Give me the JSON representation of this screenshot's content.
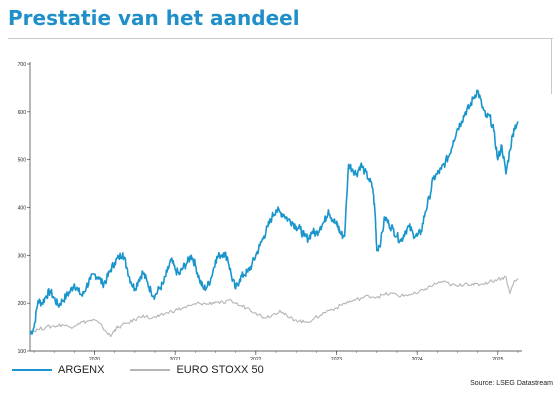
{
  "header": {
    "title": "Prestatie van het aandeel"
  },
  "source": "Source: LSEG Datastream",
  "colors": {
    "title": "#1f8fc9",
    "argenx": "#1a95cc",
    "eurostoxx": "#b5b5b5"
  },
  "chart_data": {
    "type": "line",
    "title": "",
    "xlabel": "",
    "ylabel": "",
    "xlim": [
      2019.2,
      2025.3
    ],
    "ylim": [
      100,
      700
    ],
    "grid": false,
    "legend": "bottom-left",
    "y_ticks": [
      100,
      200,
      300,
      400,
      500,
      600,
      700
    ],
    "x_ticks": [
      {
        "x": 2020,
        "label": "2020"
      },
      {
        "x": 2021,
        "label": "2021"
      },
      {
        "x": 2022,
        "label": "2022"
      },
      {
        "x": 2023,
        "label": "2023"
      },
      {
        "x": 2024,
        "label": "2024"
      },
      {
        "x": 2025,
        "label": "2025"
      }
    ],
    "series": [
      {
        "name": "ARGENX",
        "x": [
          2019.2,
          2019.25,
          2019.3,
          2019.35,
          2019.4,
          2019.45,
          2019.5,
          2019.55,
          2019.6,
          2019.65,
          2019.7,
          2019.75,
          2019.8,
          2019.85,
          2019.9,
          2019.95,
          2020.0,
          2020.05,
          2020.1,
          2020.15,
          2020.2,
          2020.25,
          2020.3,
          2020.35,
          2020.4,
          2020.45,
          2020.5,
          2020.55,
          2020.6,
          2020.65,
          2020.7,
          2020.75,
          2020.8,
          2020.85,
          2020.9,
          2020.95,
          2021.0,
          2021.05,
          2021.1,
          2021.15,
          2021.2,
          2021.25,
          2021.3,
          2021.35,
          2021.4,
          2021.45,
          2021.5,
          2021.55,
          2021.6,
          2021.65,
          2021.7,
          2021.75,
          2021.8,
          2021.85,
          2021.9,
          2021.95,
          2022.0,
          2022.05,
          2022.1,
          2022.15,
          2022.2,
          2022.25,
          2022.3,
          2022.35,
          2022.4,
          2022.45,
          2022.5,
          2022.55,
          2022.6,
          2022.65,
          2022.7,
          2022.75,
          2022.8,
          2022.85,
          2022.9,
          2022.95,
          2023.0,
          2023.02,
          2023.05,
          2023.1,
          2023.15,
          2023.2,
          2023.25,
          2023.3,
          2023.35,
          2023.4,
          2023.45,
          2023.48,
          2023.5,
          2023.55,
          2023.6,
          2023.65,
          2023.7,
          2023.75,
          2023.8,
          2023.85,
          2023.9,
          2023.95,
          2024.0,
          2024.05,
          2024.1,
          2024.15,
          2024.2,
          2024.25,
          2024.3,
          2024.35,
          2024.4,
          2024.45,
          2024.5,
          2024.55,
          2024.6,
          2024.65,
          2024.7,
          2024.75,
          2024.8,
          2024.85,
          2024.9,
          2024.95,
          2025.0,
          2025.05,
          2025.1,
          2025.15,
          2025.2,
          2025.25
        ],
        "values": [
          135,
          150,
          205,
          200,
          215,
          225,
          210,
          195,
          205,
          215,
          225,
          240,
          225,
          215,
          235,
          250,
          260,
          255,
          240,
          250,
          270,
          285,
          295,
          305,
          275,
          245,
          230,
          250,
          265,
          245,
          225,
          215,
          230,
          240,
          265,
          290,
          270,
          260,
          275,
          285,
          300,
          280,
          250,
          230,
          235,
          255,
          290,
          300,
          305,
          295,
          255,
          230,
          250,
          260,
          265,
          280,
          300,
          320,
          340,
          360,
          380,
          395,
          390,
          385,
          375,
          370,
          360,
          355,
          340,
          335,
          350,
          345,
          360,
          370,
          395,
          375,
          365,
          360,
          345,
          340,
          490,
          480,
          470,
          490,
          475,
          460,
          440,
          385,
          310,
          330,
          380,
          365,
          355,
          340,
          330,
          350,
          360,
          345,
          340,
          350,
          390,
          420,
          460,
          470,
          480,
          495,
          510,
          540,
          565,
          580,
          600,
          610,
          630,
          645,
          615,
          590,
          590,
          560,
          500,
          530,
          470,
          520,
          565,
          580
        ],
        "color": "#1a95cc"
      },
      {
        "name": "EURO STOXX 50",
        "x": [
          2019.2,
          2019.3,
          2019.4,
          2019.5,
          2019.6,
          2019.7,
          2019.8,
          2019.9,
          2020.0,
          2020.1,
          2020.2,
          2020.25,
          2020.3,
          2020.4,
          2020.5,
          2020.6,
          2020.7,
          2020.8,
          2020.9,
          2021.0,
          2021.1,
          2021.2,
          2021.3,
          2021.4,
          2021.5,
          2021.6,
          2021.7,
          2021.8,
          2021.9,
          2022.0,
          2022.1,
          2022.2,
          2022.3,
          2022.4,
          2022.5,
          2022.6,
          2022.7,
          2022.8,
          2022.9,
          2023.0,
          2023.1,
          2023.2,
          2023.3,
          2023.4,
          2023.5,
          2023.6,
          2023.7,
          2023.8,
          2023.9,
          2024.0,
          2024.1,
          2024.2,
          2024.3,
          2024.4,
          2024.5,
          2024.6,
          2024.7,
          2024.8,
          2024.9,
          2025.0,
          2025.1,
          2025.15,
          2025.2,
          2025.25
        ],
        "values": [
          140,
          145,
          150,
          152,
          155,
          150,
          158,
          162,
          165,
          150,
          130,
          145,
          150,
          158,
          165,
          175,
          168,
          172,
          180,
          185,
          190,
          195,
          200,
          198,
          203,
          200,
          205,
          195,
          190,
          180,
          170,
          175,
          185,
          170,
          165,
          160,
          165,
          175,
          185,
          190,
          200,
          205,
          210,
          215,
          213,
          218,
          220,
          215,
          218,
          220,
          230,
          238,
          245,
          240,
          235,
          242,
          238,
          240,
          245,
          250,
          255,
          220,
          245,
          250
        ],
        "color": "#b5b5b5"
      }
    ]
  }
}
